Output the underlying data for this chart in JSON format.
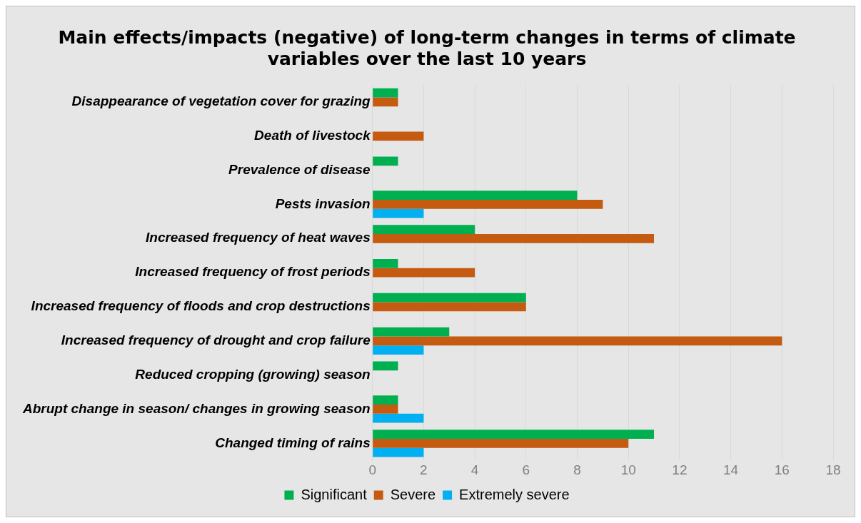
{
  "chart_data": {
    "type": "bar",
    "orientation": "horizontal",
    "title": "Main effects/impacts (negative) of long-term changes in terms of climate variables over the last 10 years",
    "categories": [
      "Disappearance of vegetation cover for grazing",
      "Death of livestock",
      "Prevalence of disease",
      "Pests invasion",
      "Increased frequency of heat waves",
      "Increased frequency of frost periods",
      "Increased frequency of floods and crop destructions",
      "Increased frequency of drought and crop failure",
      "Reduced cropping (growing) season",
      "Abrupt change in season/ changes in growing season",
      "Changed timing of rains"
    ],
    "series": [
      {
        "name": "Significant",
        "color": "#00b050",
        "values": [
          1,
          null,
          1,
          8,
          4,
          1,
          6,
          3,
          1,
          1,
          11
        ]
      },
      {
        "name": "Severe",
        "color": "#c55a11",
        "values": [
          1,
          2,
          null,
          9,
          11,
          4,
          6,
          16,
          null,
          1,
          10
        ]
      },
      {
        "name": "Extremely severe",
        "color": "#00b0f0",
        "values": [
          null,
          null,
          null,
          2,
          null,
          null,
          null,
          2,
          null,
          2,
          2
        ]
      }
    ],
    "xlim": [
      0,
      18
    ],
    "xticks": [
      0,
      2,
      4,
      6,
      8,
      10,
      12,
      14,
      16,
      18
    ],
    "grid": "x",
    "legend": "bottom"
  }
}
